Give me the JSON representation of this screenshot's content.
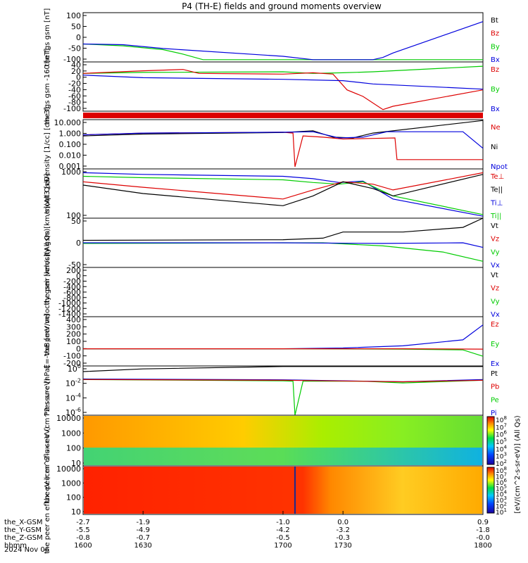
{
  "title": "P4 (TH-E) fields and ground moments overview",
  "date_label": "2024 Nov 06",
  "x_axis": {
    "rows": [
      {
        "name": "the_X-GSM",
        "values": [
          "-2.7",
          "-1.9",
          "-1.0",
          "0.0",
          "0.9"
        ]
      },
      {
        "name": "the_Y-GSM",
        "values": [
          "-5.5",
          "-4.9",
          "-4.2",
          "-3.2",
          "-1.8"
        ]
      },
      {
        "name": "the_Z-GSM",
        "values": [
          "-0.8",
          "-0.7",
          "-0.5",
          "-0.3",
          "-0.0"
        ]
      },
      {
        "name": "hhmm",
        "values": [
          "1600",
          "1630",
          "1700",
          "1730",
          "1800"
        ]
      }
    ]
  },
  "colorbar": {
    "upper_ticks": [
      "10^8",
      "10^7",
      "10^6",
      "10^5",
      "10^4",
      "10^3",
      "10^2"
    ],
    "lower_ticks": [
      "10^8",
      "10^7",
      "10^6",
      "10^5",
      "10^4",
      "10^3",
      "10^2",
      "10^1"
    ],
    "label": "[eV/(cm^2-s-sr-eV)] (All Qs)"
  },
  "colors": {
    "black": "#000000",
    "red": "#dd0000",
    "green": "#00cc00",
    "blue": "#0000dd"
  },
  "chart_data": [
    {
      "type": "line",
      "ylabel": "the fgs gsm [nT]",
      "yticks": [
        "100",
        "50",
        "0",
        "-50",
        "-100"
      ],
      "ylim": [
        -110,
        110
      ],
      "legend": [
        "Bt",
        "Bz",
        "By",
        "Bx"
      ],
      "series": [
        {
          "name": "By",
          "x": [
            1600,
            1620,
            1640,
            1650,
            1660,
            1700,
            1800
          ],
          "values": [
            -30,
            -38,
            -55,
            -75,
            -100,
            -100,
            -100
          ]
        },
        {
          "name": "Bx",
          "x": [
            1600,
            1620,
            1640,
            1700,
            1715,
            1730,
            1745,
            1750,
            1755,
            1800
          ],
          "values": [
            -30,
            -33,
            -50,
            -85,
            -100,
            -100,
            -100,
            -90,
            -70,
            70
          ]
        }
      ]
    },
    {
      "type": "line",
      "ylabel": "the fgs gsm -160 [nT]",
      "yticks": [
        "40",
        "20",
        "0",
        "-20",
        "-40",
        "-60",
        "-80",
        "-100"
      ],
      "ylim": [
        -105,
        45
      ],
      "legend": [
        "Bz",
        "By",
        "Bx"
      ],
      "series": [
        {
          "name": "By",
          "x": [
            1600,
            1630,
            1700,
            1715,
            1730,
            1745,
            1800
          ],
          "values": [
            10,
            13,
            15,
            10,
            12,
            15,
            32
          ]
        },
        {
          "name": "Bz",
          "x": [
            1600,
            1630,
            1650,
            1658,
            1700,
            1715,
            1725,
            1732,
            1740,
            1750,
            1755,
            1800
          ],
          "values": [
            10,
            18,
            22,
            10,
            8,
            12,
            8,
            -40,
            -60,
            -100,
            -90,
            -40
          ]
        },
        {
          "name": "Bx",
          "x": [
            1600,
            1630,
            1700,
            1730,
            1745,
            1800
          ],
          "values": [
            5,
            -3,
            -8,
            -12,
            -22,
            -38
          ]
        }
      ]
    },
    {
      "type": "line",
      "ylabel": "Density [1/cc] [cm-3]",
      "yticks": [
        "10.000",
        "1.000",
        "0.100",
        "0.010",
        "0.001"
      ],
      "log": true,
      "ylim": [
        0.0005,
        30
      ],
      "legend": [
        "Ne",
        "Ni",
        "Npot"
      ],
      "series": [
        {
          "name": "Ne",
          "x": [
            1600,
            1630,
            1700,
            1705,
            1706,
            1710,
            1720,
            1730,
            1745,
            1756,
            1757,
            1800
          ],
          "values": [
            1,
            1.5,
            1.8,
            1.5,
            0.0008,
            0.8,
            0.6,
            0.4,
            0.45,
            0.5,
            0.004,
            0.004
          ]
        },
        {
          "name": "Ni",
          "x": [
            1600,
            1630,
            1700,
            1715,
            1725,
            1735,
            1745,
            1800
          ],
          "values": [
            0.8,
            1.2,
            1.7,
            2.5,
            0.6,
            0.5,
            1.5,
            25
          ]
        },
        {
          "name": "Npot",
          "x": [
            1600,
            1630,
            1700,
            1715,
            1728,
            1740,
            1752,
            1790,
            1800
          ],
          "values": [
            1,
            1.5,
            1.8,
            2,
            0.5,
            0.6,
            2,
            2,
            0.05
          ]
        }
      ]
    },
    {
      "type": "line",
      "ylabel": "moqt3 [eV]",
      "yticks": [
        "1000",
        "100"
      ],
      "log": true,
      "ylim": [
        50,
        5000
      ],
      "legend": [
        "Te⊥",
        "Te||",
        "Ti⊥",
        "Ti||"
      ],
      "series": [
        {
          "name": "Ti⊥",
          "x": [
            1600,
            1630,
            1700,
            1715,
            1728,
            1740,
            1755,
            1800
          ],
          "values": [
            3500,
            3000,
            2500,
            2000,
            1400,
            1600,
            300,
            60
          ]
        },
        {
          "name": "Ti||",
          "x": [
            1600,
            1630,
            1700,
            1715,
            1728,
            1740,
            1755,
            1800
          ],
          "values": [
            2500,
            2200,
            1800,
            1400,
            1200,
            1500,
            400,
            70
          ]
        },
        {
          "name": "Te⊥",
          "x": [
            1600,
            1630,
            1700,
            1715,
            1730,
            1745,
            1755,
            1800
          ],
          "values": [
            1500,
            900,
            300,
            700,
            1500,
            1200,
            700,
            3500
          ]
        },
        {
          "name": "Te||",
          "x": [
            1600,
            1630,
            1700,
            1715,
            1730,
            1745,
            1755,
            1800
          ],
          "values": [
            1100,
            500,
            160,
            400,
            1500,
            800,
            400,
            3000
          ]
        }
      ]
    },
    {
      "type": "line",
      "ylabel": "the peir velocity gsm [km/s](All Qs)",
      "yticks": [
        "50",
        "0",
        "-50"
      ],
      "ylim": [
        -80,
        80
      ],
      "legend": [
        "Vt",
        "Vz",
        "Vy",
        "Vx"
      ],
      "series": [
        {
          "name": "Vt",
          "x": [
            1600,
            1700,
            1720,
            1730,
            1760,
            1790,
            1800
          ],
          "values": [
            8,
            10,
            15,
            35,
            35,
            50,
            90
          ]
        },
        {
          "name": "Vy",
          "x": [
            1600,
            1700,
            1720,
            1750,
            1780,
            1800
          ],
          "values": [
            -2,
            0,
            0,
            -10,
            -30,
            -60
          ]
        },
        {
          "name": "Vx",
          "x": [
            1600,
            1700,
            1750,
            1790,
            1800
          ],
          "values": [
            0,
            0,
            -2,
            0,
            -15
          ]
        }
      ]
    },
    {
      "type": "line",
      "ylabel": "the peer velocity gsm [km/s](All Qs)",
      "yticks": [
        "200",
        "0",
        "-200",
        "-400",
        "-600",
        "-800",
        "-1000",
        "-1200",
        "-1400"
      ],
      "ylim": [
        -1450,
        250
      ],
      "legend": [
        "Vt",
        "Vz",
        "Vy",
        "Vx"
      ],
      "series": []
    },
    {
      "type": "line",
      "ylabel": "E=-VxB [mV/m]",
      "yticks": [
        "400",
        "300",
        "200",
        "100",
        "0",
        "-100",
        "-200"
      ],
      "ylim": [
        -230,
        430
      ],
      "legend": [
        "Ez",
        "Ey",
        "Ex"
      ],
      "series": [
        {
          "name": "Ex",
          "x": [
            1600,
            1700,
            1730,
            1760,
            1790,
            1800
          ],
          "values": [
            0,
            0,
            10,
            40,
            120,
            320
          ]
        },
        {
          "name": "Ey",
          "x": [
            1600,
            1700,
            1760,
            1790,
            1800
          ],
          "values": [
            0,
            0,
            -5,
            -15,
            -100
          ]
        },
        {
          "name": "Ez",
          "x": [
            1600,
            1700,
            1760,
            1800
          ],
          "values": [
            0,
            0,
            0,
            -5
          ]
        }
      ]
    },
    {
      "type": "line",
      "ylabel": "Pressure [nPa]",
      "yticks": [
        "10^0",
        "10^-2",
        "10^-4",
        "10^-6"
      ],
      "log": true,
      "ylim": [
        1e-07,
        50
      ],
      "legend": [
        "Pt",
        "Pb",
        "Pe",
        "Pi"
      ],
      "series": [
        {
          "name": "Pt",
          "x": [
            1600,
            1630,
            1700,
            1800
          ],
          "values": [
            5,
            15,
            40,
            40
          ]
        },
        {
          "name": "Pi",
          "x": [
            1600,
            1700,
            1730,
            1760,
            1800
          ],
          "values": [
            0.25,
            0.18,
            0.12,
            0.08,
            0.2
          ]
        },
        {
          "name": "Pe",
          "x": [
            1600,
            1700,
            1705,
            1706,
            1710,
            1740,
            1760,
            1800
          ],
          "values": [
            0.2,
            0.12,
            0.1,
            1e-07,
            0.1,
            0.1,
            0.05,
            0.15
          ]
        },
        {
          "name": "Pb",
          "x": [
            1600,
            1700,
            1760,
            1800
          ],
          "values": [
            0.2,
            0.15,
            0.08,
            0.15
          ]
        }
      ]
    },
    {
      "type": "heatmap",
      "ylabel": "the peir en eflux eV (cm^2-s-sr-eV)",
      "yticks": [
        "10000",
        "1000",
        "100",
        "10"
      ],
      "log": true
    },
    {
      "type": "heatmap",
      "ylabel": "the peer en eflux eV (cm^2-s-sr-eV)",
      "yticks": [
        "10000",
        "1000",
        "100",
        "10"
      ],
      "log": true
    }
  ]
}
